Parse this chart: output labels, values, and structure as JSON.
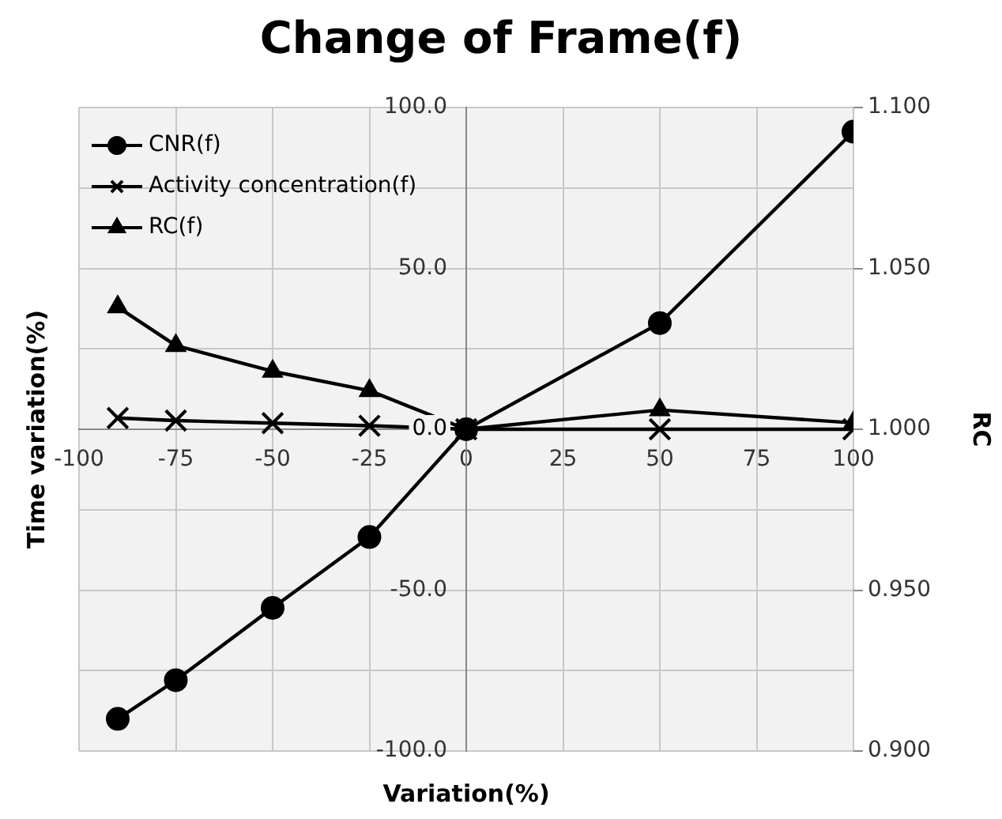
{
  "chart_data": {
    "type": "line",
    "title": "Change of Frame(f)",
    "xlabel": "Variation(%)",
    "ylabel": "Time variation(%)",
    "y2label": "RC",
    "xlim": [
      -100,
      100
    ],
    "xticks": [
      -100,
      -75,
      -50,
      -25,
      0,
      25,
      50,
      75,
      100
    ],
    "ylim": [
      -100,
      100
    ],
    "yticks": [
      {
        "value": -100,
        "label": "-100.0"
      },
      {
        "value": -75,
        "label": null
      },
      {
        "value": -50,
        "label": "-50.0"
      },
      {
        "value": -25,
        "label": null
      },
      {
        "value": 0,
        "label": "0.0"
      },
      {
        "value": 25,
        "label": null
      },
      {
        "value": 50,
        "label": "50.0"
      },
      {
        "value": 75,
        "label": null
      },
      {
        "value": 100,
        "label": "100.0"
      }
    ],
    "y2lim": [
      0.9,
      1.1
    ],
    "y2ticks": [
      {
        "value": 0.9,
        "label": "0.900"
      },
      {
        "value": 0.95,
        "label": "0.950"
      },
      {
        "value": 1.0,
        "label": "1.000"
      },
      {
        "value": 1.05,
        "label": "1.050"
      },
      {
        "value": 1.1,
        "label": "1.100"
      }
    ],
    "grid": true,
    "legend": "top left",
    "line_style": "solid",
    "series": [
      {
        "name": "CNR(f)",
        "color": "#000000",
        "marker": "circle",
        "x": [
          -90,
          -75,
          -50,
          -25,
          0,
          50,
          100
        ],
        "values": [
          -90,
          -78,
          -55.5,
          -33.5,
          0,
          33,
          92.5
        ]
      },
      {
        "name": "Activity concentration(f)",
        "color": "#000000",
        "marker": "cross",
        "x": [
          -90,
          -75,
          -50,
          -25,
          0,
          50,
          100
        ],
        "values": [
          3.5,
          2.7,
          1.9,
          1.1,
          0,
          0,
          0
        ]
      },
      {
        "name": "RC(f)",
        "color": "#000000",
        "marker": "triangle",
        "axis": "y2",
        "x": [
          -90,
          -75,
          -50,
          -25,
          0,
          50,
          100
        ],
        "values": [
          1.038,
          1.026,
          1.018,
          1.012,
          1.0,
          1.006,
          1.002
        ]
      }
    ]
  }
}
